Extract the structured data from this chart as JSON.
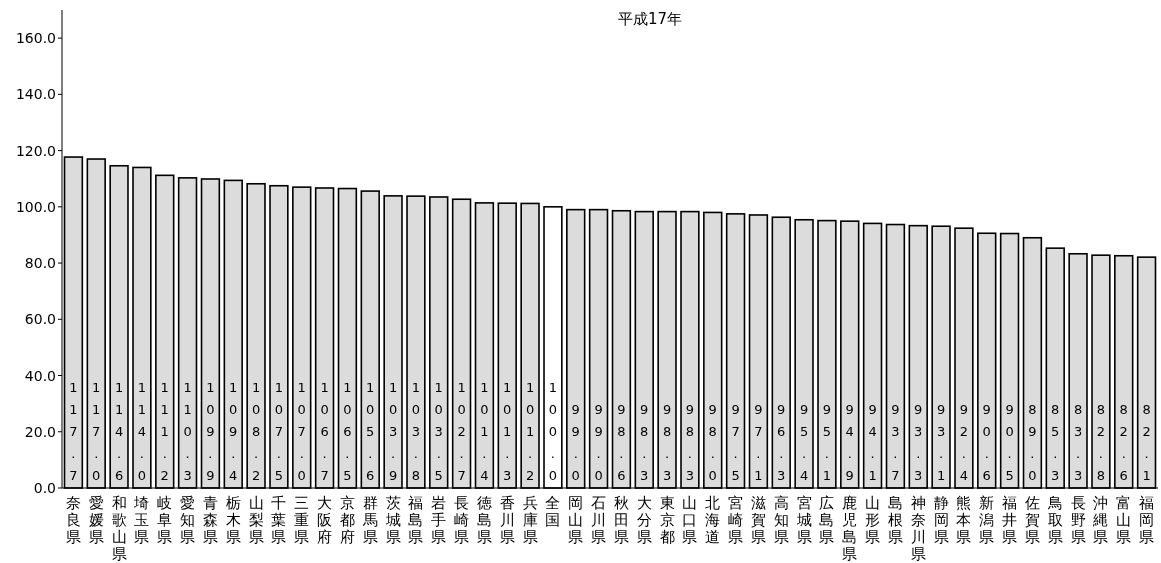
{
  "chart_data": {
    "type": "bar",
    "title": "平成17年",
    "categories": [
      "奈良県",
      "愛媛県",
      "和歌山県",
      "埼玉県",
      "岐阜県",
      "愛知県",
      "青森県",
      "栃木県",
      "山梨県",
      "千葉県",
      "三重県",
      "大阪府",
      "京都府",
      "群馬県",
      "茨城県",
      "福島県",
      "岩手県",
      "長崎県",
      "徳島県",
      "香川県",
      "兵庫県",
      "全国",
      "岡山県",
      "石川県",
      "秋田県",
      "大分県",
      "東京都",
      "山口県",
      "北海道",
      "宮崎県",
      "滋賀県",
      "高知県",
      "宮城県",
      "広島県",
      "鹿児島県",
      "山形県",
      "島根県",
      "神奈川県",
      "静岡県",
      "熊本県",
      "新潟県",
      "福井県",
      "佐賀県",
      "鳥取県",
      "長野県",
      "沖縄県",
      "富山県",
      "福岡県"
    ],
    "values": [
      117.7,
      117.0,
      114.6,
      114.0,
      111.2,
      110.3,
      109.9,
      109.4,
      108.2,
      107.5,
      107.0,
      106.7,
      106.5,
      105.6,
      103.9,
      103.8,
      103.5,
      102.7,
      101.4,
      101.3,
      101.2,
      100.0,
      99.0,
      99.0,
      98.6,
      98.3,
      98.3,
      98.3,
      98.0,
      97.5,
      97.1,
      96.3,
      95.4,
      95.1,
      94.9,
      94.1,
      93.7,
      93.3,
      93.1,
      92.4,
      90.6,
      90.5,
      89.0,
      85.3,
      83.3,
      82.8,
      82.6,
      82.1
    ],
    "value_labels": [
      "117.7",
      "117.0",
      "114.6",
      "114.0",
      "111.2",
      "110.3",
      "109.9",
      "109.4",
      "108.2",
      "107.5",
      "107.0",
      "106.7",
      "106.5",
      "105.6",
      "103.9",
      "103.8",
      "103.5",
      "102.7",
      "101.4",
      "101.3",
      "101.2",
      "100.0",
      "99.0",
      "99.0",
      "98.6",
      "98.3",
      "98.3",
      "98.3",
      "98.0",
      "97.5",
      "97.1",
      "96.3",
      "95.4",
      "95.1",
      "94.9",
      "94.1",
      "93.7",
      "93.3",
      "93.1",
      "92.4",
      "90.6",
      "90.5",
      "89.0",
      "85.3",
      "83.3",
      "82.8",
      "82.6",
      "82.1"
    ],
    "colors": [
      "#dcdcdc",
      "#dcdcdc",
      "#dcdcdc",
      "#dcdcdc",
      "#dcdcdc",
      "#dcdcdc",
      "#dcdcdc",
      "#dcdcdc",
      "#dcdcdc",
      "#dcdcdc",
      "#dcdcdc",
      "#dcdcdc",
      "#dcdcdc",
      "#dcdcdc",
      "#dcdcdc",
      "#dcdcdc",
      "#dcdcdc",
      "#dcdcdc",
      "#dcdcdc",
      "#dcdcdc",
      "#dcdcdc",
      "#ffffff",
      "#dcdcdc",
      "#dcdcdc",
      "#dcdcdc",
      "#dcdcdc",
      "#dcdcdc",
      "#dcdcdc",
      "#dcdcdc",
      "#dcdcdc",
      "#dcdcdc",
      "#dcdcdc",
      "#dcdcdc",
      "#dcdcdc",
      "#dcdcdc",
      "#dcdcdc",
      "#dcdcdc",
      "#dcdcdc",
      "#dcdcdc",
      "#dcdcdc",
      "#dcdcdc",
      "#dcdcdc",
      "#dcdcdc",
      "#dcdcdc",
      "#dcdcdc",
      "#dcdcdc",
      "#dcdcdc",
      "#dcdcdc"
    ],
    "ylim": [
      0,
      170
    ],
    "yticks": [
      {
        "value": 0,
        "label": "0.0"
      },
      {
        "value": 20,
        "label": "20.0"
      },
      {
        "value": 40,
        "label": "40.0"
      },
      {
        "value": 60,
        "label": "60.0"
      },
      {
        "value": 80,
        "label": "80.0"
      },
      {
        "value": 100,
        "label": "100.0"
      },
      {
        "value": 120,
        "label": "120.0"
      },
      {
        "value": 140,
        "label": "140.0"
      },
      {
        "value": 160,
        "label": "160.0"
      }
    ]
  }
}
